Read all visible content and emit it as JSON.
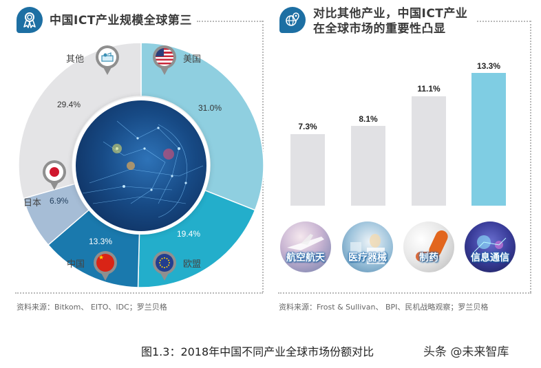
{
  "left_panel": {
    "title": "中国ICT产业规模全球第三",
    "icon": "award-ribbon-icon",
    "source": "资料来源：Bitkom、 EITO、IDC；罗兰贝格",
    "segments": [
      {
        "country": "美国",
        "value_label": "31.0%",
        "color": "#8fcfe0",
        "flag": "us-flag-icon"
      },
      {
        "country": "欧盟",
        "value_label": "19.4%",
        "color": "#23aecb",
        "flag": "eu-flag-icon"
      },
      {
        "country": "中国",
        "value_label": "13.3%",
        "color": "#1a79ad",
        "flag": "china-flag-icon"
      },
      {
        "country": "日本",
        "value_label": "6.9%",
        "color": "#a6bdd6",
        "flag": "japan-flag-icon"
      },
      {
        "country": "其他",
        "value_label": "29.4%",
        "color": "#e4e4e6",
        "flag": "others-icon"
      }
    ]
  },
  "right_panel": {
    "title_line1": "对比其他产业，中国ICT产业",
    "title_line2": "在全球市场的重要性凸显",
    "icon": "globe-location-icon",
    "source": "资料来源：Frost & Sullivan、 BPI、民机战略观察；罗兰贝格",
    "industries": [
      {
        "label": "航空航天",
        "value_label": "7.3%",
        "color": "#e1e1e4"
      },
      {
        "label": "医疗器械",
        "value_label": "8.1%",
        "color": "#e1e1e4"
      },
      {
        "label": "制药",
        "value_label": "11.1%",
        "color": "#e1e1e4"
      },
      {
        "label": "信息通信",
        "value_label": "13.3%",
        "color": "#7fcde3"
      }
    ]
  },
  "caption": "图1.3：2018年中国不同产业全球市场份额对比",
  "watermark": "头条 @未来智库",
  "chart_data": [
    {
      "type": "pie",
      "title": "中国ICT产业规模全球第三",
      "categories": [
        "美国",
        "欧盟",
        "中国",
        "日本",
        "其他"
      ],
      "values": [
        31.0,
        19.4,
        13.3,
        6.9,
        29.4
      ],
      "unit": "%",
      "donut": true,
      "colors": [
        "#8fcfe0",
        "#23aecb",
        "#1a79ad",
        "#a6bdd6",
        "#e4e4e6"
      ],
      "source": "资料来源：Bitkom、 EITO、IDC；罗兰贝格"
    },
    {
      "type": "bar",
      "title": "对比其他产业，中国ICT产业在全球市场的重要性凸显",
      "categories": [
        "航空航天",
        "医疗器械",
        "制药",
        "信息通信"
      ],
      "values": [
        7.3,
        8.1,
        11.1,
        13.3
      ],
      "unit": "%",
      "xlabel": "",
      "ylabel": "",
      "grid": false,
      "highlight": "信息通信",
      "source": "资料来源：Frost & Sullivan、 BPI、民机战略观察；罗兰贝格"
    }
  ]
}
